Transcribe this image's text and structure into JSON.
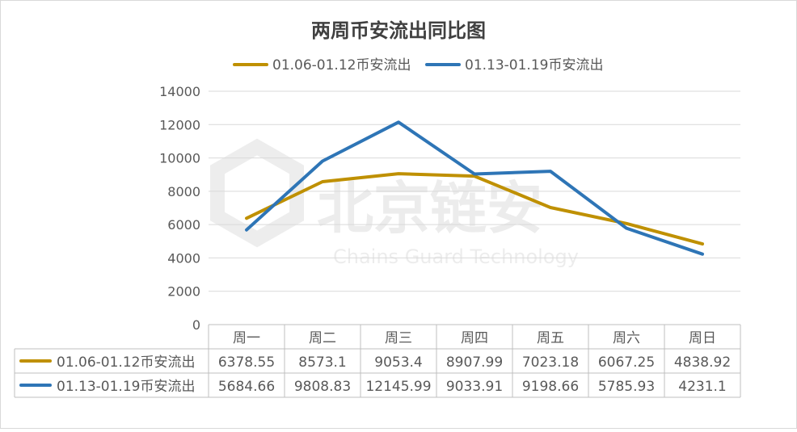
{
  "chart_data": {
    "type": "line",
    "title": "两周币安流出同比图",
    "watermark": {
      "cn": "北京链安",
      "en": "Chains Guard Technology"
    },
    "categories": [
      "周一",
      "周二",
      "周三",
      "周四",
      "周五",
      "周六",
      "周日"
    ],
    "ylim": [
      0,
      14000
    ],
    "yticks": [
      "0",
      "2000",
      "4000",
      "6000",
      "8000",
      "10000",
      "12000",
      "14000"
    ],
    "grid": true,
    "legend_position": "top",
    "data_table": true,
    "series": [
      {
        "name": "01.06-01.12币安流出",
        "color": "#BF9000",
        "values": [
          6378.55,
          8573.1,
          9053.4,
          8907.99,
          7023.18,
          6067.25,
          4838.92
        ],
        "labels": [
          "6378.55",
          "8573.1",
          "9053.4",
          "8907.99",
          "7023.18",
          "6067.25",
          "4838.92"
        ]
      },
      {
        "name": "01.13-01.19币安流出",
        "color": "#2E75B6",
        "values": [
          5684.66,
          9808.83,
          12145.99,
          9033.91,
          9198.66,
          5785.93,
          4231.1
        ],
        "labels": [
          "5684.66",
          "9808.83",
          "12145.99",
          "9033.91",
          "9198.66",
          "5785.93",
          "4231.1"
        ]
      }
    ]
  }
}
